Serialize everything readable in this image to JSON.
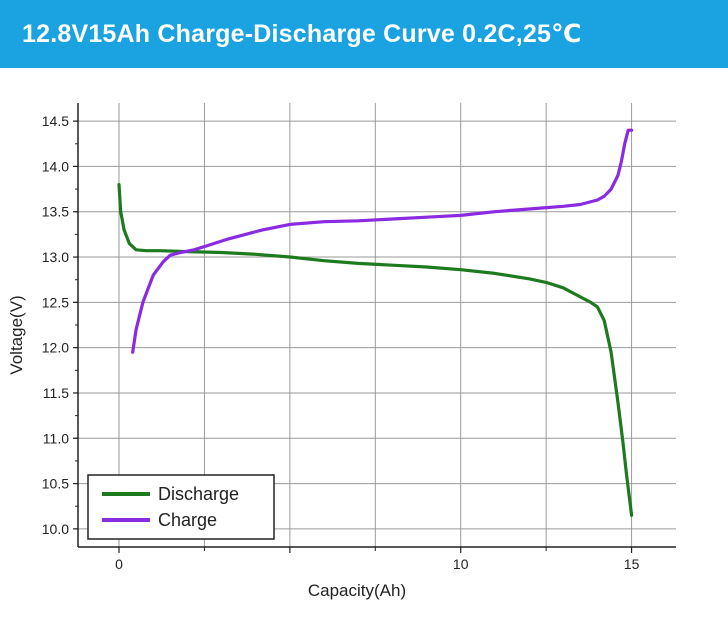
{
  "banner": {
    "title": "12.8V15Ah Charge-Discharge Curve 0.2C,25℃",
    "background": "#1aa3e0",
    "text_color": "#ffffff"
  },
  "chart_data": {
    "type": "line",
    "title": "12.8V15Ah Charge-Discharge Curve 0.2C,25℃",
    "xlabel": "Capacity(Ah)",
    "ylabel": "Voltage(V)",
    "xlim": [
      -1.2,
      16.3
    ],
    "ylim": [
      9.8,
      14.7
    ],
    "xticks": [
      0,
      5,
      10,
      15
    ],
    "xtick_labels": [
      "0",
      "",
      "10",
      "15"
    ],
    "yticks": [
      10.0,
      10.5,
      11.0,
      11.5,
      12.0,
      12.5,
      13.0,
      13.5,
      14.0,
      14.5
    ],
    "ytick_labels": [
      "10.0",
      "10.5",
      "11.0",
      "11.5",
      "12.0",
      "12.5",
      "13.0",
      "13.5",
      "14.0",
      "14.5"
    ],
    "grid": true,
    "grid_x": [
      0,
      2.5,
      5,
      7.5,
      10,
      12.5,
      15
    ],
    "grid_y": [
      10.0,
      10.5,
      11.0,
      11.5,
      12.0,
      12.5,
      13.0,
      13.5,
      14.0,
      14.5
    ],
    "legend_position": "bottom-left",
    "series": [
      {
        "name": "Discharge",
        "color": "#1e7a1e",
        "x": [
          0,
          0.05,
          0.15,
          0.3,
          0.5,
          0.8,
          1.2,
          2,
          3,
          4,
          5,
          6,
          7,
          8,
          9,
          10,
          11,
          12,
          12.5,
          13,
          13.5,
          13.8,
          14.0,
          14.2,
          14.4,
          14.6,
          14.75,
          14.85,
          14.95,
          15.0
        ],
        "y": [
          13.8,
          13.5,
          13.3,
          13.15,
          13.08,
          13.07,
          13.07,
          13.06,
          13.05,
          13.03,
          13.0,
          12.96,
          12.93,
          12.91,
          12.89,
          12.86,
          12.82,
          12.76,
          12.72,
          12.66,
          12.56,
          12.5,
          12.45,
          12.3,
          11.95,
          11.4,
          10.95,
          10.6,
          10.3,
          10.15
        ]
      },
      {
        "name": "Charge",
        "color": "#8a2be2",
        "x": [
          0.4,
          0.5,
          0.7,
          1.0,
          1.3,
          1.5,
          1.8,
          2.2,
          2.7,
          3.2,
          3.7,
          4.2,
          5,
          6,
          7,
          8,
          9,
          10,
          11,
          12,
          13,
          13.5,
          14,
          14.2,
          14.4,
          14.6,
          14.7,
          14.8,
          14.9,
          15.0
        ],
        "y": [
          11.95,
          12.2,
          12.5,
          12.8,
          12.95,
          13.02,
          13.05,
          13.08,
          13.14,
          13.2,
          13.25,
          13.3,
          13.36,
          13.39,
          13.4,
          13.42,
          13.44,
          13.46,
          13.5,
          13.53,
          13.56,
          13.58,
          13.63,
          13.67,
          13.75,
          13.9,
          14.05,
          14.25,
          14.4,
          14.4
        ]
      }
    ]
  }
}
